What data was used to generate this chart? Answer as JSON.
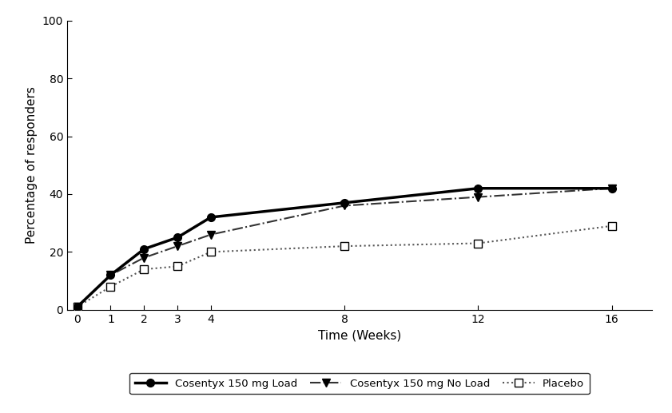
{
  "weeks": [
    0,
    1,
    2,
    3,
    4,
    8,
    12,
    16
  ],
  "cosentyx_load": [
    1,
    12,
    21,
    25,
    32,
    37,
    42,
    42
  ],
  "cosentyx_no_load": [
    1,
    12,
    18,
    22,
    26,
    36,
    39,
    42
  ],
  "placebo": [
    1,
    8,
    14,
    15,
    20,
    22,
    23,
    29
  ],
  "xlabel": "Time (Weeks)",
  "ylabel": "Percentage of responders",
  "ylim": [
    0,
    100
  ],
  "yticks": [
    0,
    20,
    40,
    60,
    80,
    100
  ],
  "xticks": [
    0,
    1,
    2,
    3,
    4,
    8,
    12,
    16
  ],
  "legend_labels": [
    "Cosentyx 150 mg Load",
    "Cosentyx 150 mg No Load",
    "Placebo"
  ],
  "line_color_load": "#000000",
  "line_color_no_load": "#333333",
  "line_color_placebo": "#555555"
}
